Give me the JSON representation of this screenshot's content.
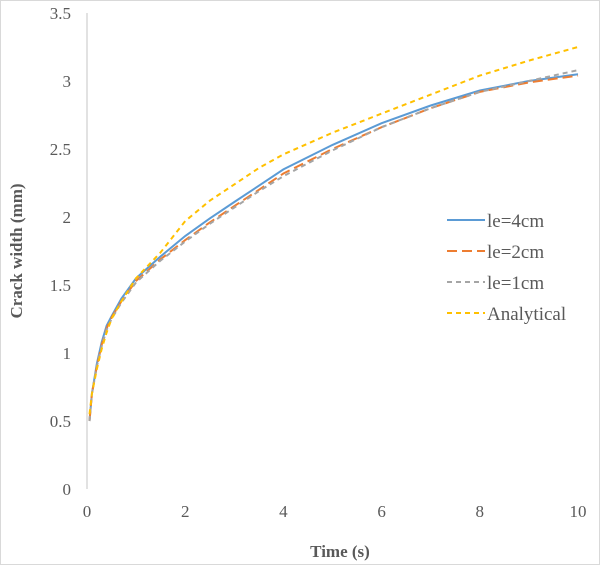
{
  "chart_data": {
    "type": "line",
    "title": "",
    "xlabel": "Time (s)",
    "ylabel": "Crack width (mm)",
    "xlim": [
      0,
      10
    ],
    "ylim": [
      0,
      3.5
    ],
    "xticks": [
      "0",
      "2",
      "4",
      "6",
      "8",
      "10"
    ],
    "yticks": [
      "0",
      "0.5",
      "1",
      "1.5",
      "2",
      "2.5",
      "3",
      "3.5"
    ],
    "grid": false,
    "legend_position": "right",
    "series": [
      {
        "name": "le=4cm",
        "color": "#5b9bd5",
        "dash": "solid",
        "x": [
          0.05,
          0.1,
          0.2,
          0.3,
          0.4,
          0.5,
          0.7,
          1,
          1.5,
          2,
          2.5,
          3,
          3.5,
          4,
          5,
          6,
          7,
          8,
          9,
          10
        ],
        "y": [
          0.5,
          0.7,
          0.92,
          1.08,
          1.2,
          1.27,
          1.4,
          1.55,
          1.71,
          1.86,
          1.99,
          2.11,
          2.23,
          2.35,
          2.53,
          2.69,
          2.82,
          2.93,
          3.0,
          3.05
        ]
      },
      {
        "name": "le=2cm",
        "color": "#ed7d31",
        "dash": "long",
        "x": [
          0.05,
          0.1,
          0.2,
          0.3,
          0.4,
          0.5,
          0.7,
          1,
          1.5,
          2,
          2.5,
          3,
          3.5,
          4,
          5,
          6,
          7,
          8,
          9,
          10
        ],
        "y": [
          0.5,
          0.7,
          0.9,
          1.06,
          1.18,
          1.26,
          1.38,
          1.53,
          1.69,
          1.83,
          1.96,
          2.08,
          2.2,
          2.32,
          2.5,
          2.66,
          2.8,
          2.92,
          2.99,
          3.04
        ]
      },
      {
        "name": "le=1cm",
        "color": "#a5a5a5",
        "dash": "short",
        "x": [
          0.05,
          0.1,
          0.2,
          0.3,
          0.4,
          0.5,
          0.7,
          1,
          1.5,
          2,
          2.5,
          3,
          3.5,
          4,
          5,
          6,
          7,
          8,
          9,
          10
        ],
        "y": [
          0.5,
          0.7,
          0.9,
          1.05,
          1.17,
          1.25,
          1.37,
          1.52,
          1.68,
          1.82,
          1.95,
          2.07,
          2.19,
          2.3,
          2.49,
          2.66,
          2.8,
          2.92,
          3.0,
          3.08
        ]
      },
      {
        "name": "Analytical",
        "color": "#ffc000",
        "dash": "short",
        "x": [
          0.05,
          0.1,
          0.2,
          0.3,
          0.4,
          0.5,
          0.7,
          1,
          1.5,
          2,
          2.5,
          3,
          3.5,
          4,
          5,
          6,
          7,
          8,
          9,
          10
        ],
        "y": [
          0.55,
          0.7,
          0.88,
          1.03,
          1.15,
          1.25,
          1.38,
          1.55,
          1.74,
          1.97,
          2.12,
          2.24,
          2.36,
          2.46,
          2.62,
          2.76,
          2.9,
          3.04,
          3.15,
          3.25
        ]
      }
    ]
  }
}
